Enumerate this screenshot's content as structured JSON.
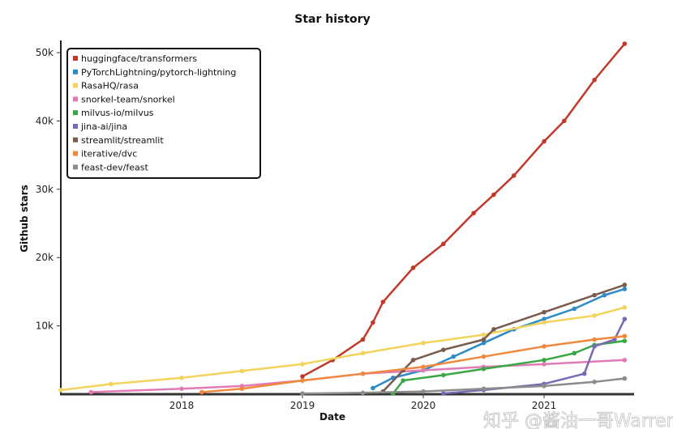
{
  "chart_data": {
    "type": "line",
    "title": "Star history",
    "xlabel": "Date",
    "ylabel": "Github stars",
    "xlim": [
      "2017-01",
      "2021-10"
    ],
    "ylim": [
      0,
      52000
    ],
    "x_ticks": [
      "2018",
      "2019",
      "2020",
      "2021"
    ],
    "y_ticks": [
      {
        "v": 10000,
        "label": "10k"
      },
      {
        "v": 20000,
        "label": "20k"
      },
      {
        "v": 30000,
        "label": "30k"
      },
      {
        "v": 40000,
        "label": "40k"
      },
      {
        "v": 50000,
        "label": "50k"
      }
    ],
    "legend_position": "top-left",
    "grid": false,
    "series": [
      {
        "name": "huggingface/transformers",
        "color": "#c0392b",
        "points": [
          [
            "2019-01",
            2600
          ],
          [
            "2019-04",
            5000
          ],
          [
            "2019-07",
            8000
          ],
          [
            "2019-08",
            10500
          ],
          [
            "2019-09",
            13500
          ],
          [
            "2019-12",
            18500
          ],
          [
            "2020-03",
            22000
          ],
          [
            "2020-06",
            26500
          ],
          [
            "2020-08",
            29200
          ],
          [
            "2020-10",
            32000
          ],
          [
            "2021-01",
            37000
          ],
          [
            "2021-03",
            40000
          ],
          [
            "2021-06",
            46000
          ],
          [
            "2021-09",
            51300
          ]
        ]
      },
      {
        "name": "PyTorchLightning/pytorch-lightning",
        "color": "#2e8bc9",
        "points": [
          [
            "2019-08",
            900
          ],
          [
            "2019-10",
            2400
          ],
          [
            "2020-01",
            3500
          ],
          [
            "2020-04",
            5500
          ],
          [
            "2020-07",
            7500
          ],
          [
            "2020-10",
            9500
          ],
          [
            "2021-01",
            11000
          ],
          [
            "2021-04",
            12500
          ],
          [
            "2021-07",
            14500
          ],
          [
            "2021-09",
            15400
          ]
        ]
      },
      {
        "name": "RasaHQ/rasa",
        "color": "#f2d35b",
        "points": [
          [
            "2017-01",
            600
          ],
          [
            "2017-06",
            1500
          ],
          [
            "2018-01",
            2400
          ],
          [
            "2018-07",
            3400
          ],
          [
            "2019-01",
            4400
          ],
          [
            "2019-07",
            6000
          ],
          [
            "2020-01",
            7500
          ],
          [
            "2020-07",
            8700
          ],
          [
            "2021-01",
            10500
          ],
          [
            "2021-06",
            11500
          ],
          [
            "2021-09",
            12700
          ]
        ]
      },
      {
        "name": "snorkel-team/snorkel",
        "color": "#e07bb5",
        "points": [
          [
            "2017-04",
            300
          ],
          [
            "2018-01",
            800
          ],
          [
            "2018-07",
            1200
          ],
          [
            "2019-01",
            2000
          ],
          [
            "2019-07",
            3000
          ],
          [
            "2020-01",
            3500
          ],
          [
            "2020-07",
            4000
          ],
          [
            "2021-01",
            4400
          ],
          [
            "2021-09",
            5000
          ]
        ]
      },
      {
        "name": "milvus-io/milvus",
        "color": "#3aa745",
        "points": [
          [
            "2019-10",
            100
          ],
          [
            "2019-11",
            2000
          ],
          [
            "2020-03",
            2800
          ],
          [
            "2020-07",
            3700
          ],
          [
            "2021-01",
            5000
          ],
          [
            "2021-04",
            6000
          ],
          [
            "2021-06",
            7200
          ],
          [
            "2021-09",
            7800
          ]
        ]
      },
      {
        "name": "jina-ai/jina",
        "color": "#7b68b5",
        "points": [
          [
            "2020-03",
            100
          ],
          [
            "2020-07",
            600
          ],
          [
            "2021-01",
            1500
          ],
          [
            "2021-05",
            3000
          ],
          [
            "2021-06",
            7000
          ],
          [
            "2021-08",
            8000
          ],
          [
            "2021-09",
            11000
          ]
        ]
      },
      {
        "name": "streamlit/streamlit",
        "color": "#7a5c4f",
        "points": [
          [
            "2019-09",
            400
          ],
          [
            "2019-11",
            3500
          ],
          [
            "2019-12",
            5000
          ],
          [
            "2020-03",
            6500
          ],
          [
            "2020-07",
            8000
          ],
          [
            "2020-08",
            9500
          ],
          [
            "2021-01",
            12000
          ],
          [
            "2021-06",
            14500
          ],
          [
            "2021-09",
            16000
          ]
        ]
      },
      {
        "name": "iterative/dvc",
        "color": "#f0883e",
        "points": [
          [
            "2018-03",
            300
          ],
          [
            "2018-07",
            800
          ],
          [
            "2019-01",
            2000
          ],
          [
            "2019-07",
            3000
          ],
          [
            "2020-01",
            4000
          ],
          [
            "2020-07",
            5500
          ],
          [
            "2021-01",
            7000
          ],
          [
            "2021-06",
            8000
          ],
          [
            "2021-09",
            8500
          ]
        ]
      },
      {
        "name": "feast-dev/feast",
        "color": "#8c8c8c",
        "points": [
          [
            "2019-01",
            100
          ],
          [
            "2019-07",
            200
          ],
          [
            "2020-01",
            400
          ],
          [
            "2020-07",
            800
          ],
          [
            "2021-01",
            1200
          ],
          [
            "2021-06",
            1800
          ],
          [
            "2021-09",
            2300
          ]
        ]
      }
    ]
  },
  "watermark": "知乎 @酱油一哥Warren"
}
